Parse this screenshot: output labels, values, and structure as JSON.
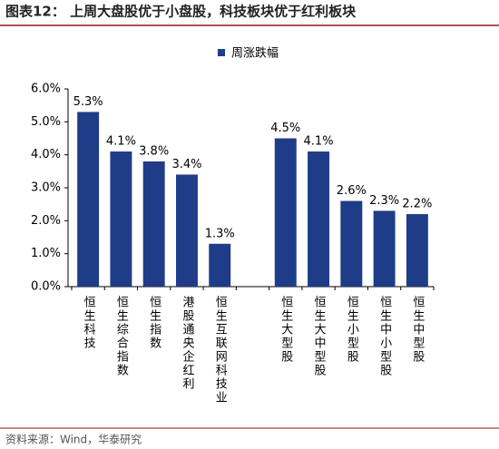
{
  "chart_data": {
    "type": "bar",
    "title": "图表12：  上周大盘股优于小盘股，科技板块优于红利板块",
    "source": "资料来源：Wind，华泰研究",
    "categories": [
      "恒生科技",
      "恒生综合指数",
      "恒生指数",
      "港股通央企红利",
      "恒生互联网科技业",
      null,
      "恒生大型股",
      "恒生大中型股",
      "恒生小型股",
      "恒生中小型股",
      "恒生中型股"
    ],
    "series": [
      {
        "name": "周涨跌幅",
        "color": "#1f3c88",
        "values": [
          5.3,
          4.1,
          3.8,
          3.4,
          1.3,
          null,
          4.5,
          4.1,
          2.6,
          2.3,
          2.2
        ],
        "value_labels": [
          "5.3%",
          "4.1%",
          "3.8%",
          "3.4%",
          "1.3%",
          null,
          "4.5%",
          "4.1%",
          "2.6%",
          "2.3%",
          "2.2%"
        ]
      }
    ],
    "ylim": [
      0,
      6
    ],
    "yticks": [
      {
        "value": 0,
        "label": "0.0%"
      },
      {
        "value": 1,
        "label": "1.0%"
      },
      {
        "value": 2,
        "label": "2.0%"
      },
      {
        "value": 3,
        "label": "3.0%"
      },
      {
        "value": 4,
        "label": "4.0%"
      },
      {
        "value": 5,
        "label": "5.0%"
      },
      {
        "value": 6,
        "label": "6.0%"
      }
    ],
    "grid": false,
    "legend": "top"
  }
}
